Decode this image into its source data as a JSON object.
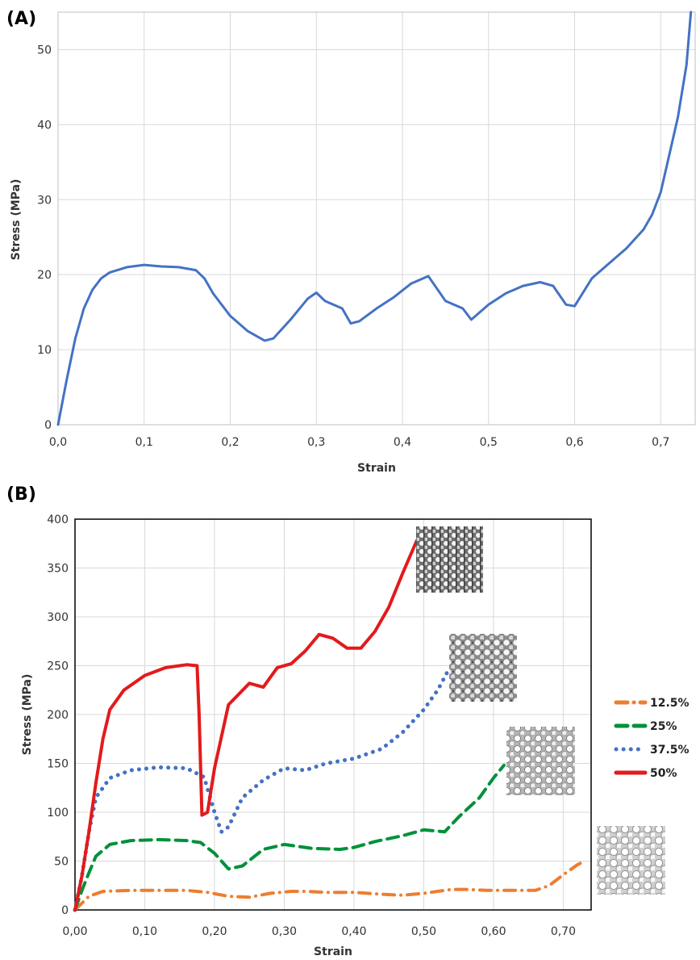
{
  "chart_data": [
    {
      "panel_label": "(A)",
      "type": "line",
      "xlabel": "Strain",
      "ylabel": "Stress (MPa)",
      "xlim": [
        0,
        0.74
      ],
      "ylim": [
        0,
        55
      ],
      "x_ticks": [
        0,
        0.1,
        0.2,
        0.3,
        0.4,
        0.5,
        0.6,
        0.7
      ],
      "x_tick_labels": [
        "0,0",
        "0,1",
        "0,2",
        "0,3",
        "0,4",
        "0,5",
        "0,6",
        "0,7"
      ],
      "y_ticks": [
        0,
        10,
        20,
        30,
        40,
        50
      ],
      "y_tick_labels": [
        "0",
        "10",
        "20",
        "30",
        "40",
        "50"
      ],
      "grid": true,
      "series": [
        {
          "color": "#4472C4",
          "x": [
            0,
            0.01,
            0.02,
            0.03,
            0.04,
            0.05,
            0.06,
            0.08,
            0.1,
            0.12,
            0.14,
            0.16,
            0.17,
            0.18,
            0.2,
            0.22,
            0.24,
            0.25,
            0.27,
            0.29,
            0.3,
            0.31,
            0.33,
            0.34,
            0.35,
            0.37,
            0.39,
            0.41,
            0.43,
            0.45,
            0.47,
            0.48,
            0.5,
            0.52,
            0.54,
            0.56,
            0.575,
            0.59,
            0.6,
            0.62,
            0.64,
            0.66,
            0.68,
            0.69,
            0.7,
            0.71,
            0.72,
            0.73,
            0.735
          ],
          "y": [
            0,
            6,
            11.5,
            15.5,
            18,
            19.5,
            20.3,
            21,
            21.3,
            21.1,
            21,
            20.6,
            19.5,
            17.5,
            14.5,
            12.5,
            11.2,
            11.5,
            14,
            16.8,
            17.6,
            16.5,
            15.5,
            13.5,
            13.8,
            15.5,
            17,
            18.8,
            19.8,
            16.5,
            15.5,
            14,
            16,
            17.5,
            18.5,
            19,
            18.5,
            16,
            15.8,
            19.5,
            21.5,
            23.5,
            26,
            28,
            31,
            36,
            41,
            48,
            55
          ]
        }
      ]
    },
    {
      "panel_label": "(B)",
      "type": "line",
      "xlabel": "Strain",
      "ylabel": "Stress (MPa)",
      "xlim": [
        0,
        0.74
      ],
      "ylim": [
        0,
        400
      ],
      "x_ticks": [
        0,
        0.1,
        0.2,
        0.3,
        0.4,
        0.5,
        0.6,
        0.7
      ],
      "x_tick_labels": [
        "0,00",
        "0,10",
        "0,20",
        "0,30",
        "0,40",
        "0,50",
        "0,60",
        "0,70"
      ],
      "y_ticks": [
        0,
        50,
        100,
        150,
        200,
        250,
        300,
        350,
        400
      ],
      "y_tick_labels": [
        "0",
        "50",
        "100",
        "150",
        "200",
        "250",
        "300",
        "350",
        "400"
      ],
      "grid": true,
      "legend_position": "right",
      "series": [
        {
          "name": "12.5%",
          "color": "#ED7D31",
          "style": "dash-dot",
          "x": [
            0,
            0.02,
            0.04,
            0.08,
            0.12,
            0.16,
            0.19,
            0.22,
            0.25,
            0.28,
            0.31,
            0.33,
            0.36,
            0.4,
            0.44,
            0.47,
            0.5,
            0.54,
            0.56,
            0.59,
            0.62,
            0.66,
            0.68,
            0.7,
            0.72,
            0.73
          ],
          "y": [
            0,
            14,
            19,
            20,
            20,
            20,
            18,
            14,
            13,
            17,
            19,
            19,
            18,
            18,
            16,
            15,
            17,
            21,
            21,
            20,
            20,
            20,
            25,
            36,
            46,
            50
          ]
        },
        {
          "name": "25%",
          "color": "#00913A",
          "style": "dash",
          "x": [
            0,
            0.01,
            0.02,
            0.03,
            0.05,
            0.08,
            0.12,
            0.16,
            0.18,
            0.2,
            0.22,
            0.24,
            0.27,
            0.3,
            0.34,
            0.38,
            0.4,
            0.43,
            0.47,
            0.5,
            0.53,
            0.55,
            0.58,
            0.6,
            0.615
          ],
          "y": [
            0,
            20,
            38,
            55,
            67,
            71,
            72,
            71,
            69,
            58,
            42,
            45,
            62,
            67,
            63,
            62,
            64,
            70,
            76,
            82,
            80,
            95,
            115,
            135,
            148
          ]
        },
        {
          "name": "37.5%",
          "color": "#4472C4",
          "style": "dot",
          "x": [
            0,
            0.01,
            0.02,
            0.03,
            0.05,
            0.08,
            0.12,
            0.16,
            0.185,
            0.2,
            0.21,
            0.22,
            0.24,
            0.27,
            0.3,
            0.33,
            0.36,
            0.4,
            0.44,
            0.47,
            0.5,
            0.52,
            0.535
          ],
          "y": [
            0,
            35,
            80,
            115,
            135,
            143,
            146,
            145,
            136,
            100,
            80,
            85,
            115,
            133,
            145,
            143,
            150,
            155,
            165,
            182,
            205,
            225,
            245
          ]
        },
        {
          "name": "50%",
          "color": "#E31A1C",
          "style": "solid",
          "x": [
            0,
            0.01,
            0.02,
            0.03,
            0.04,
            0.05,
            0.07,
            0.1,
            0.13,
            0.16,
            0.175,
            0.178,
            0.182,
            0.19,
            0.2,
            0.22,
            0.25,
            0.27,
            0.29,
            0.31,
            0.33,
            0.35,
            0.37,
            0.39,
            0.41,
            0.43,
            0.45,
            0.47,
            0.49
          ],
          "y": [
            0,
            35,
            80,
            130,
            175,
            205,
            225,
            240,
            248,
            251,
            250,
            200,
            97,
            100,
            145,
            210,
            232,
            228,
            248,
            252,
            265,
            282,
            278,
            268,
            268,
            285,
            310,
            345,
            378
          ]
        }
      ]
    }
  ]
}
